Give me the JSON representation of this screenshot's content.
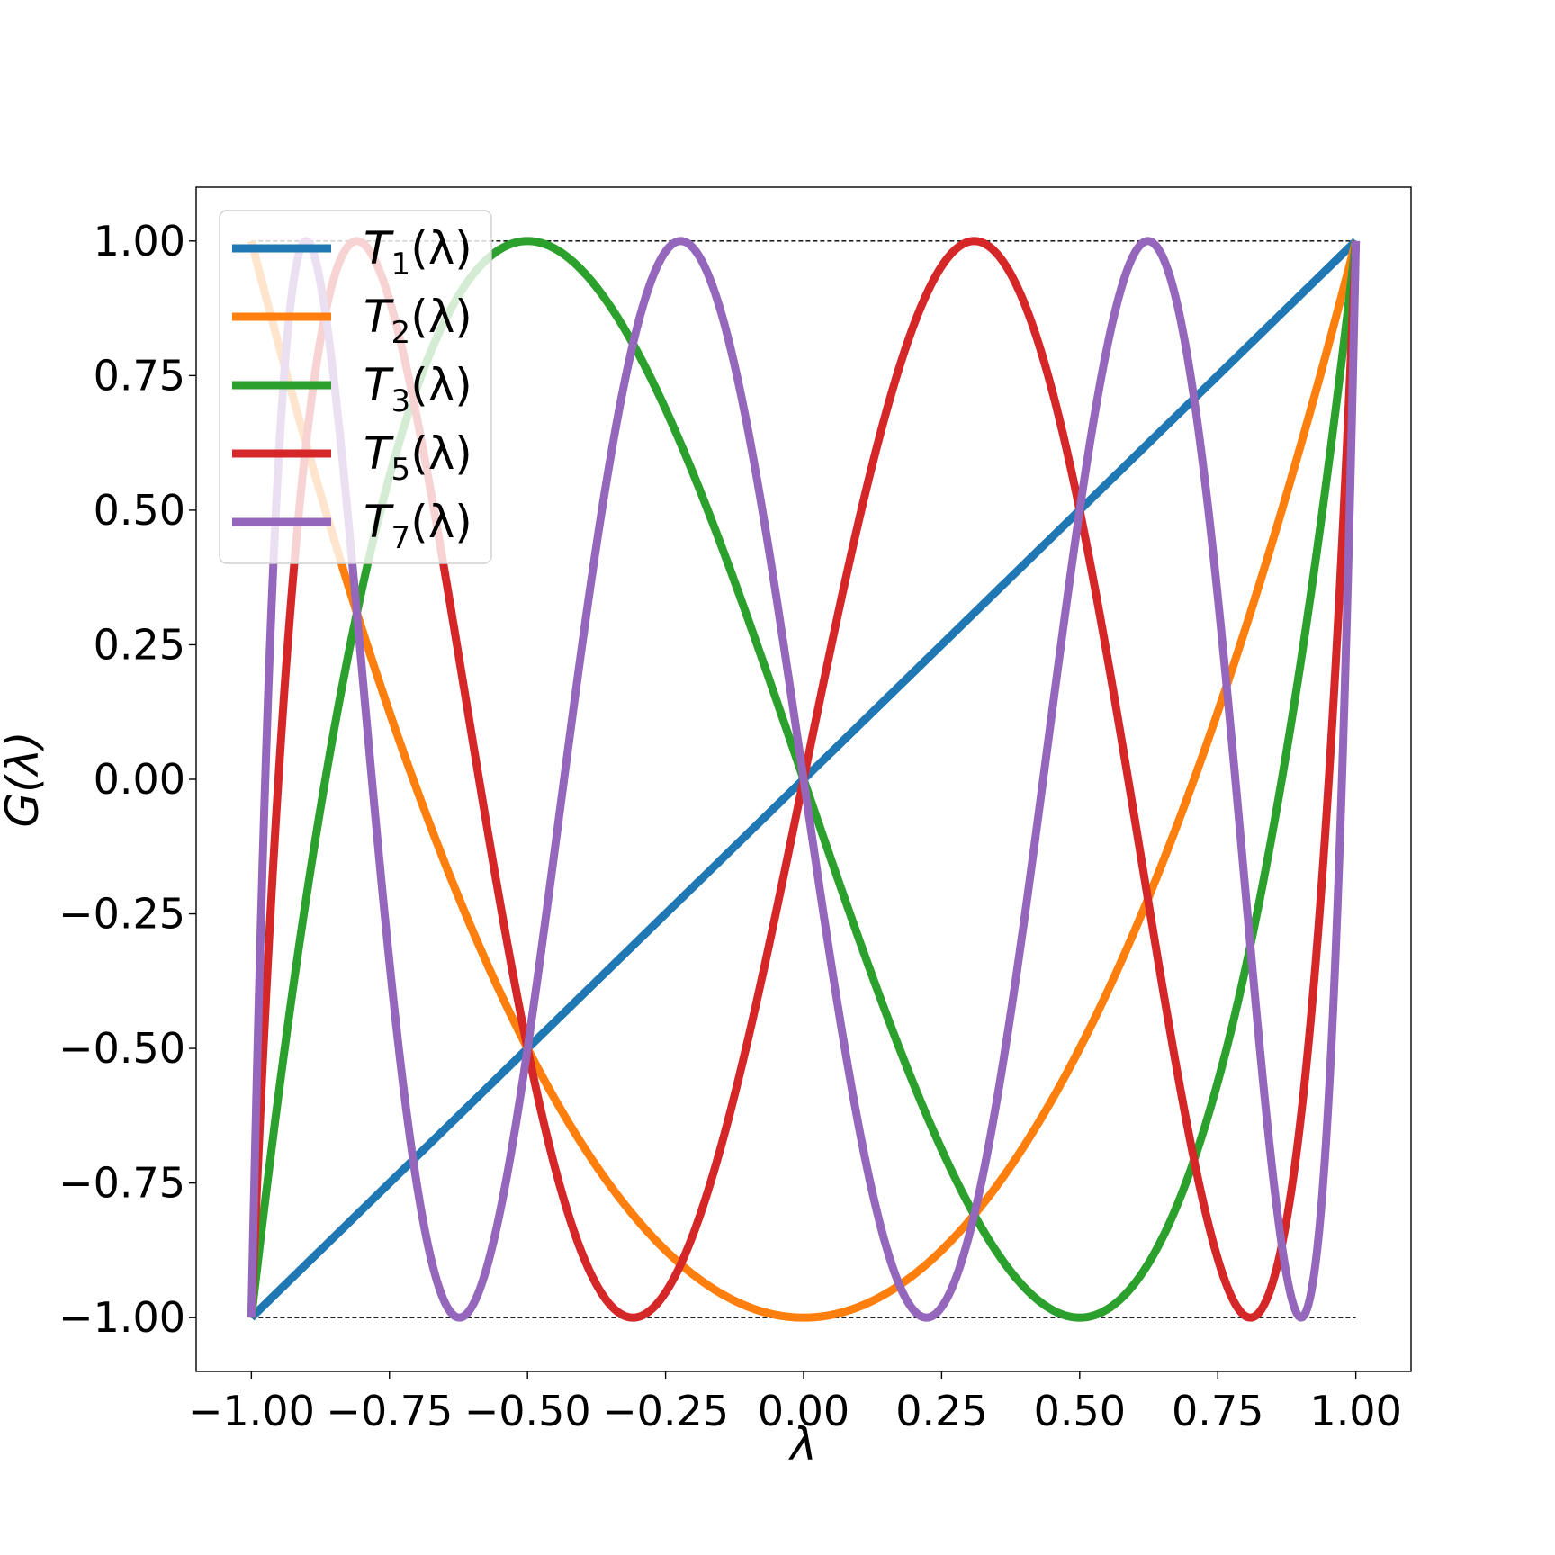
{
  "chart_data": {
    "type": "line",
    "xlabel": "λ",
    "ylabel": "G(λ)",
    "xlim": [
      -1.1,
      1.1
    ],
    "ylim": [
      -1.1,
      1.1
    ],
    "grid": false,
    "legend_position": "top-left",
    "xticks": [
      -1.0,
      -0.75,
      -0.5,
      -0.25,
      0.0,
      0.25,
      0.5,
      0.75,
      1.0
    ],
    "xtick_labels": [
      "−1.00",
      "−0.75",
      "−0.50",
      "−0.25",
      "0.00",
      "0.25",
      "0.50",
      "0.75",
      "1.00"
    ],
    "yticks": [
      1.0,
      0.75,
      0.5,
      0.25,
      0.0,
      -0.25,
      -0.5,
      -0.75,
      -1.0
    ],
    "ytick_labels": [
      "1.00",
      "0.75",
      "0.50",
      "0.25",
      "0.00",
      "−0.25",
      "−0.50",
      "−0.75",
      "−1.00"
    ],
    "reference_lines": [
      {
        "y": 1.0,
        "x_range": [
          -1.0,
          1.0
        ],
        "style": "dashed",
        "color": "#000000"
      },
      {
        "y": -1.0,
        "x_range": [
          -1.0,
          1.0
        ],
        "style": "dashed",
        "color": "#000000"
      }
    ],
    "series": [
      {
        "name": "T1(λ)",
        "name_base": "T",
        "name_sub": "1",
        "name_arg": "(λ)",
        "order": 1,
        "color": "#1f77b4",
        "x": [
          -1.0,
          -0.75,
          -0.5,
          -0.25,
          0.0,
          0.25,
          0.5,
          0.75,
          1.0
        ],
        "y": [
          -1.0,
          -0.75,
          -0.5,
          -0.25,
          0.0,
          0.25,
          0.5,
          0.75,
          1.0
        ]
      },
      {
        "name": "T2(λ)",
        "name_base": "T",
        "name_sub": "2",
        "name_arg": "(λ)",
        "order": 2,
        "color": "#ff7f0e",
        "x": [
          -1.0,
          -0.75,
          -0.5,
          -0.25,
          0.0,
          0.25,
          0.5,
          0.75,
          1.0
        ],
        "y": [
          1.0,
          0.125,
          -0.5,
          -0.875,
          -1.0,
          -0.875,
          -0.5,
          0.125,
          1.0
        ]
      },
      {
        "name": "T3(λ)",
        "name_base": "T",
        "name_sub": "3",
        "name_arg": "(λ)",
        "order": 3,
        "color": "#2ca02c",
        "x": [
          -1.0,
          -0.75,
          -0.5,
          -0.25,
          0.0,
          0.25,
          0.5,
          0.75,
          1.0
        ],
        "y": [
          -1.0,
          0.5625,
          1.0,
          0.6875,
          0.0,
          -0.6875,
          -1.0,
          -0.5625,
          1.0
        ]
      },
      {
        "name": "T5(λ)",
        "name_base": "T",
        "name_sub": "5",
        "name_arg": "(λ)",
        "order": 5,
        "color": "#d62728",
        "x": [
          -1.0,
          -0.809,
          -0.5,
          -0.309,
          0.0,
          0.309,
          0.5,
          0.809,
          1.0
        ],
        "y": [
          -1.0,
          1.0,
          -0.5,
          -1.0,
          0.0,
          1.0,
          0.5,
          -1.0,
          1.0
        ]
      },
      {
        "name": "T7(λ)",
        "name_base": "T",
        "name_sub": "7",
        "name_arg": "(λ)",
        "order": 7,
        "color": "#9467bd",
        "x": [
          -1.0,
          -0.901,
          -0.623,
          -0.5,
          -0.223,
          0.0,
          0.223,
          0.5,
          0.623,
          0.901,
          1.0
        ],
        "y": [
          -1.0,
          1.0,
          -1.0,
          -0.5,
          1.0,
          0.0,
          -1.0,
          0.5,
          1.0,
          -1.0,
          1.0
        ]
      }
    ]
  }
}
